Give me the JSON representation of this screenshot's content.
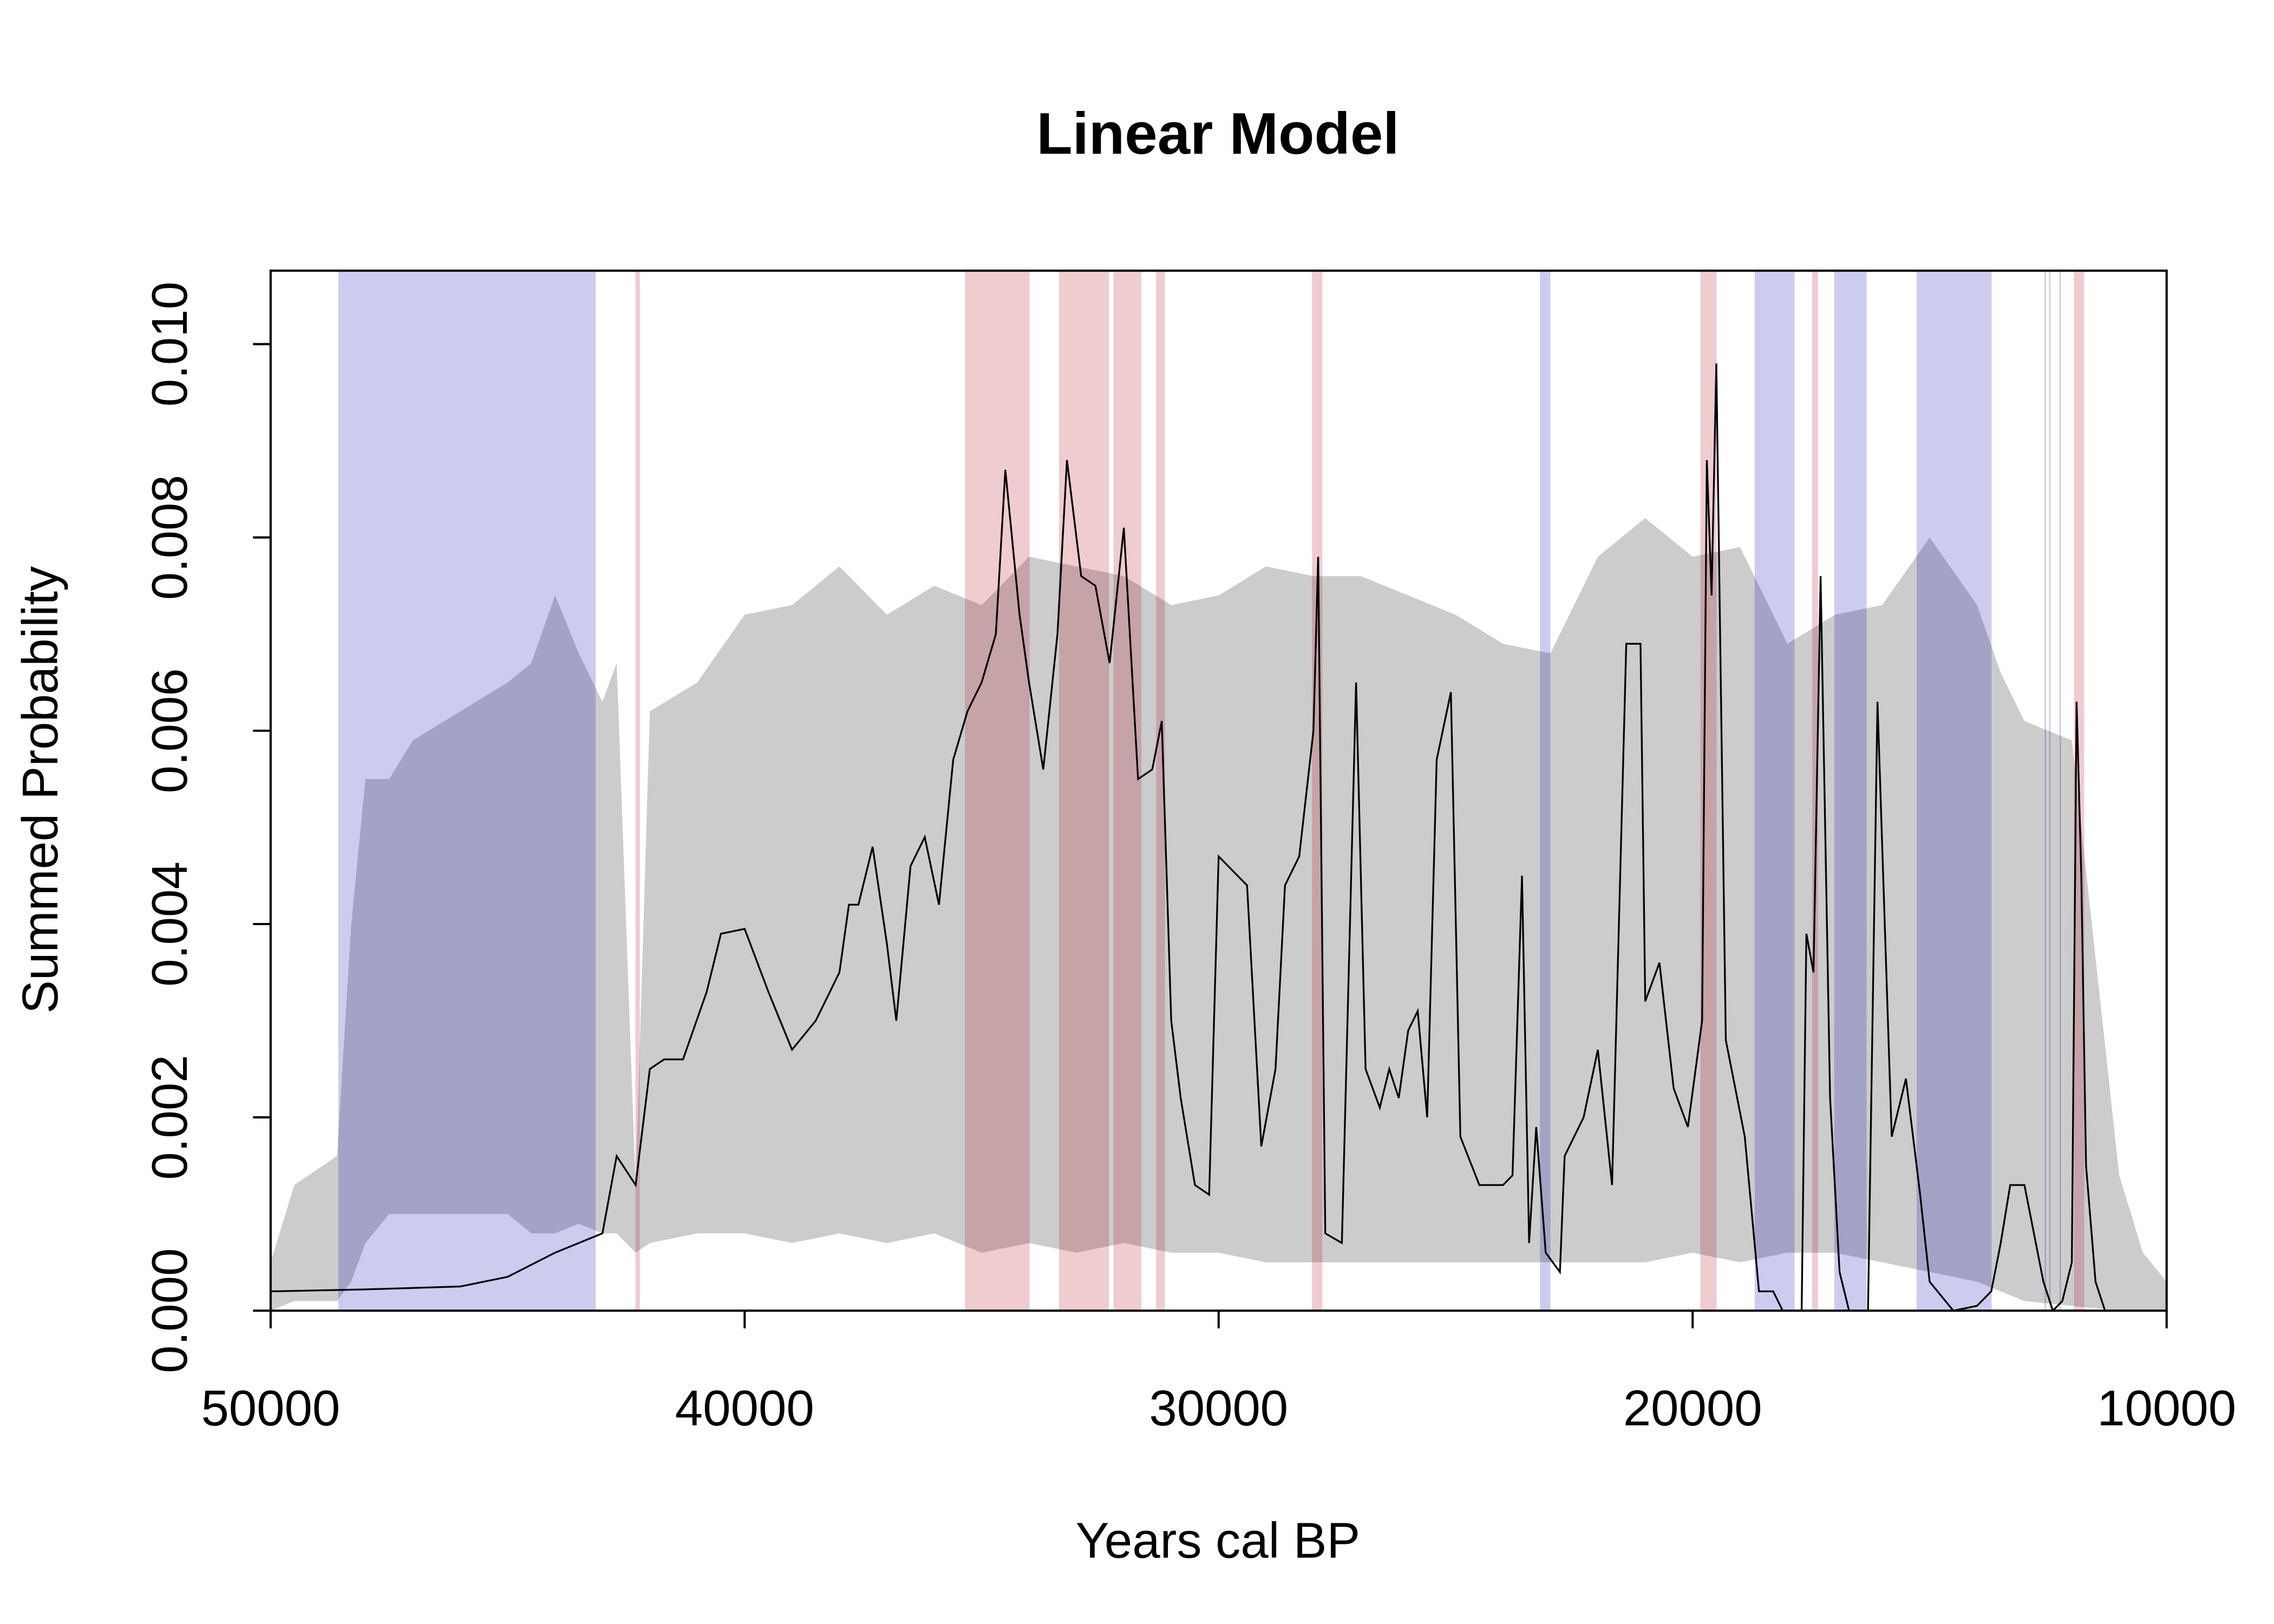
{
  "chart_data": {
    "type": "line",
    "title": "Linear Model",
    "x_label": "Years cal BP",
    "y_label": "Summed Probability",
    "xlim": [
      50000,
      10000
    ],
    "ylim": [
      0,
      0.01076
    ],
    "xticks": [
      50000,
      40000,
      30000,
      20000,
      10000
    ],
    "yticks": [
      {
        "value": 0,
        "label": "0.000"
      },
      {
        "value": 0.002,
        "label": "0.002"
      },
      {
        "value": 0.004,
        "label": "0.004"
      },
      {
        "value": 0.006,
        "label": "0.006"
      },
      {
        "value": 0.008,
        "label": "0.008"
      },
      {
        "value": 0.01,
        "label": "0.010"
      }
    ],
    "envelope": {
      "color": "#cccccc",
      "x": [
        50000,
        49500,
        48600,
        48300,
        48000,
        47500,
        47000,
        46000,
        45000,
        44500,
        44000,
        43500,
        43000,
        42700,
        42300,
        42000,
        41000,
        40000,
        39000,
        38000,
        37000,
        36000,
        35000,
        34000,
        33000,
        32000,
        31000,
        30000,
        29000,
        28000,
        27000,
        26000,
        25000,
        24000,
        23000,
        22000,
        21000,
        20000,
        19000,
        18000,
        17000,
        16000,
        15000,
        14000,
        13500,
        13000,
        12000,
        11000,
        10500,
        10000
      ],
      "lower": [
        0,
        0.0001,
        0.0001,
        0.0003,
        0.0007,
        0.001,
        0.001,
        0.001,
        0.001,
        0.0008,
        0.0008,
        0.0009,
        0.0008,
        0.0008,
        0.0006,
        0.0007,
        0.0008,
        0.0008,
        0.0007,
        0.0008,
        0.0007,
        0.0008,
        0.0006,
        0.0007,
        0.0006,
        0.0007,
        0.0006,
        0.0006,
        0.0005,
        0.0005,
        0.0005,
        0.0005,
        0.0005,
        0.0005,
        0.0005,
        0.0005,
        0.0005,
        0.0006,
        0.0005,
        0.0006,
        0.0006,
        0.0005,
        0.0004,
        0.0003,
        0.0002,
        0.0001,
        5e-05,
        0,
        0,
        0
      ],
      "upper": [
        0.0005,
        0.0013,
        0.0016,
        0.004,
        0.0055,
        0.0055,
        0.0059,
        0.0062,
        0.0065,
        0.0067,
        0.0074,
        0.0068,
        0.0063,
        0.0067,
        0.0013,
        0.0062,
        0.0065,
        0.0072,
        0.0073,
        0.0077,
        0.0072,
        0.0075,
        0.0073,
        0.0078,
        0.0077,
        0.0076,
        0.0073,
        0.0074,
        0.0077,
        0.0076,
        0.0076,
        0.0074,
        0.0072,
        0.0069,
        0.0068,
        0.0078,
        0.0082,
        0.0078,
        0.0079,
        0.0069,
        0.0072,
        0.0073,
        0.008,
        0.0073,
        0.0066,
        0.0061,
        0.0059,
        0.0014,
        0.0006,
        0.0003
      ]
    },
    "regions": [
      {
        "color": "rgba(0,0,170,0.2)",
        "ranges": [
          [
            48573,
            43142
          ],
          [
            23220,
            23000
          ],
          [
            18690,
            17850
          ],
          [
            17012,
            16330
          ],
          [
            15275,
            13693
          ],
          [
            12575,
            12560
          ],
          [
            12480,
            12465
          ],
          [
            12260,
            12245
          ]
        ]
      },
      {
        "color": "rgba(170,0,20,0.2)",
        "ranges": [
          [
            42304,
            42211
          ],
          [
            35353,
            33988
          ],
          [
            33367,
            32312
          ],
          [
            32219,
            31630
          ],
          [
            31319,
            31133
          ],
          [
            28030,
            27813
          ],
          [
            19836,
            19495
          ],
          [
            17478,
            17354
          ],
          [
            11955,
            11738
          ]
        ]
      }
    ],
    "x": [
      50000,
      48000,
      46000,
      45000,
      44000,
      43500,
      43000,
      42700,
      42300,
      42000,
      41700,
      41300,
      40800,
      40500,
      40000,
      39500,
      39000,
      38500,
      38000,
      37800,
      37600,
      37300,
      37000,
      36800,
      36500,
      36200,
      35900,
      35600,
      35300,
      35000,
      34700,
      34500,
      34200,
      34000,
      33700,
      33400,
      33200,
      32900,
      32600,
      32300,
      32000,
      31700,
      31400,
      31200,
      31000,
      30800,
      30500,
      30200,
      30000,
      29600,
      29400,
      29100,
      28800,
      28600,
      28300,
      28000,
      27900,
      27750,
      27400,
      27100,
      26900,
      26600,
      26400,
      26200,
      26000,
      25800,
      25600,
      25400,
      25100,
      24900,
      24500,
      24000,
      23800,
      23600,
      23450,
      23300,
      23100,
      22800,
      22700,
      22300,
      22000,
      21700,
      21400,
      21100,
      21000,
      20700,
      20400,
      20100,
      19800,
      19700,
      19600,
      19500,
      19300,
      18900,
      18600,
      18300,
      18100,
      17700,
      17600,
      17450,
      17300,
      17100,
      16900,
      16700,
      16300,
      16100,
      15800,
      15500,
      15200,
      15000,
      14500,
      14000,
      13700,
      13500,
      13300,
      13000,
      12800,
      12600,
      12400,
      12200,
      12000,
      11900,
      11800,
      11700,
      11500,
      11300
    ],
    "series": [
      {
        "color": "#000000",
        "values": [
          0.0002,
          0.00022,
          0.00025,
          0.00035,
          0.0006,
          0.0007,
          0.0008,
          0.0016,
          0.0013,
          0.0025,
          0.0026,
          0.0026,
          0.0033,
          0.0039,
          0.00395,
          0.0033,
          0.0027,
          0.003,
          0.0035,
          0.0042,
          0.0042,
          0.0048,
          0.0038,
          0.003,
          0.0046,
          0.0049,
          0.0042,
          0.0057,
          0.0062,
          0.0065,
          0.007,
          0.0087,
          0.0072,
          0.0065,
          0.0056,
          0.007,
          0.0088,
          0.0076,
          0.0075,
          0.0067,
          0.0081,
          0.0055,
          0.0056,
          0.0061,
          0.003,
          0.0022,
          0.0013,
          0.0012,
          0.0047,
          0.0045,
          0.0044,
          0.0017,
          0.0025,
          0.0044,
          0.0047,
          0.006,
          0.0078,
          0.0008,
          0.0007,
          0.0065,
          0.0025,
          0.0021,
          0.0025,
          0.0022,
          0.0029,
          0.0031,
          0.002,
          0.0057,
          0.0064,
          0.0018,
          0.0013,
          0.0013,
          0.0014,
          0.0045,
          0.0007,
          0.0019,
          0.0006,
          0.0004,
          0.0016,
          0.002,
          0.0027,
          0.0013,
          0.0069,
          0.0069,
          0.0032,
          0.0036,
          0.0023,
          0.0019,
          0.003,
          0.0088,
          0.0074,
          0.0098,
          0.0028,
          0.0018,
          0.0002,
          0.0002,
          0,
          0,
          0.0039,
          0.0035,
          0.0076,
          0.0022,
          0.0004,
          0,
          0,
          0.0063,
          0.0018,
          0.0024,
          0.0012,
          0.0003,
          0,
          5e-05,
          0.0002,
          0.0007,
          0.0013,
          0.0013,
          0.0008,
          0.0003,
          0,
          0.0001,
          0.0005,
          0.0063,
          0.0045,
          0.0015,
          0.0003,
          0
        ]
      }
    ]
  }
}
